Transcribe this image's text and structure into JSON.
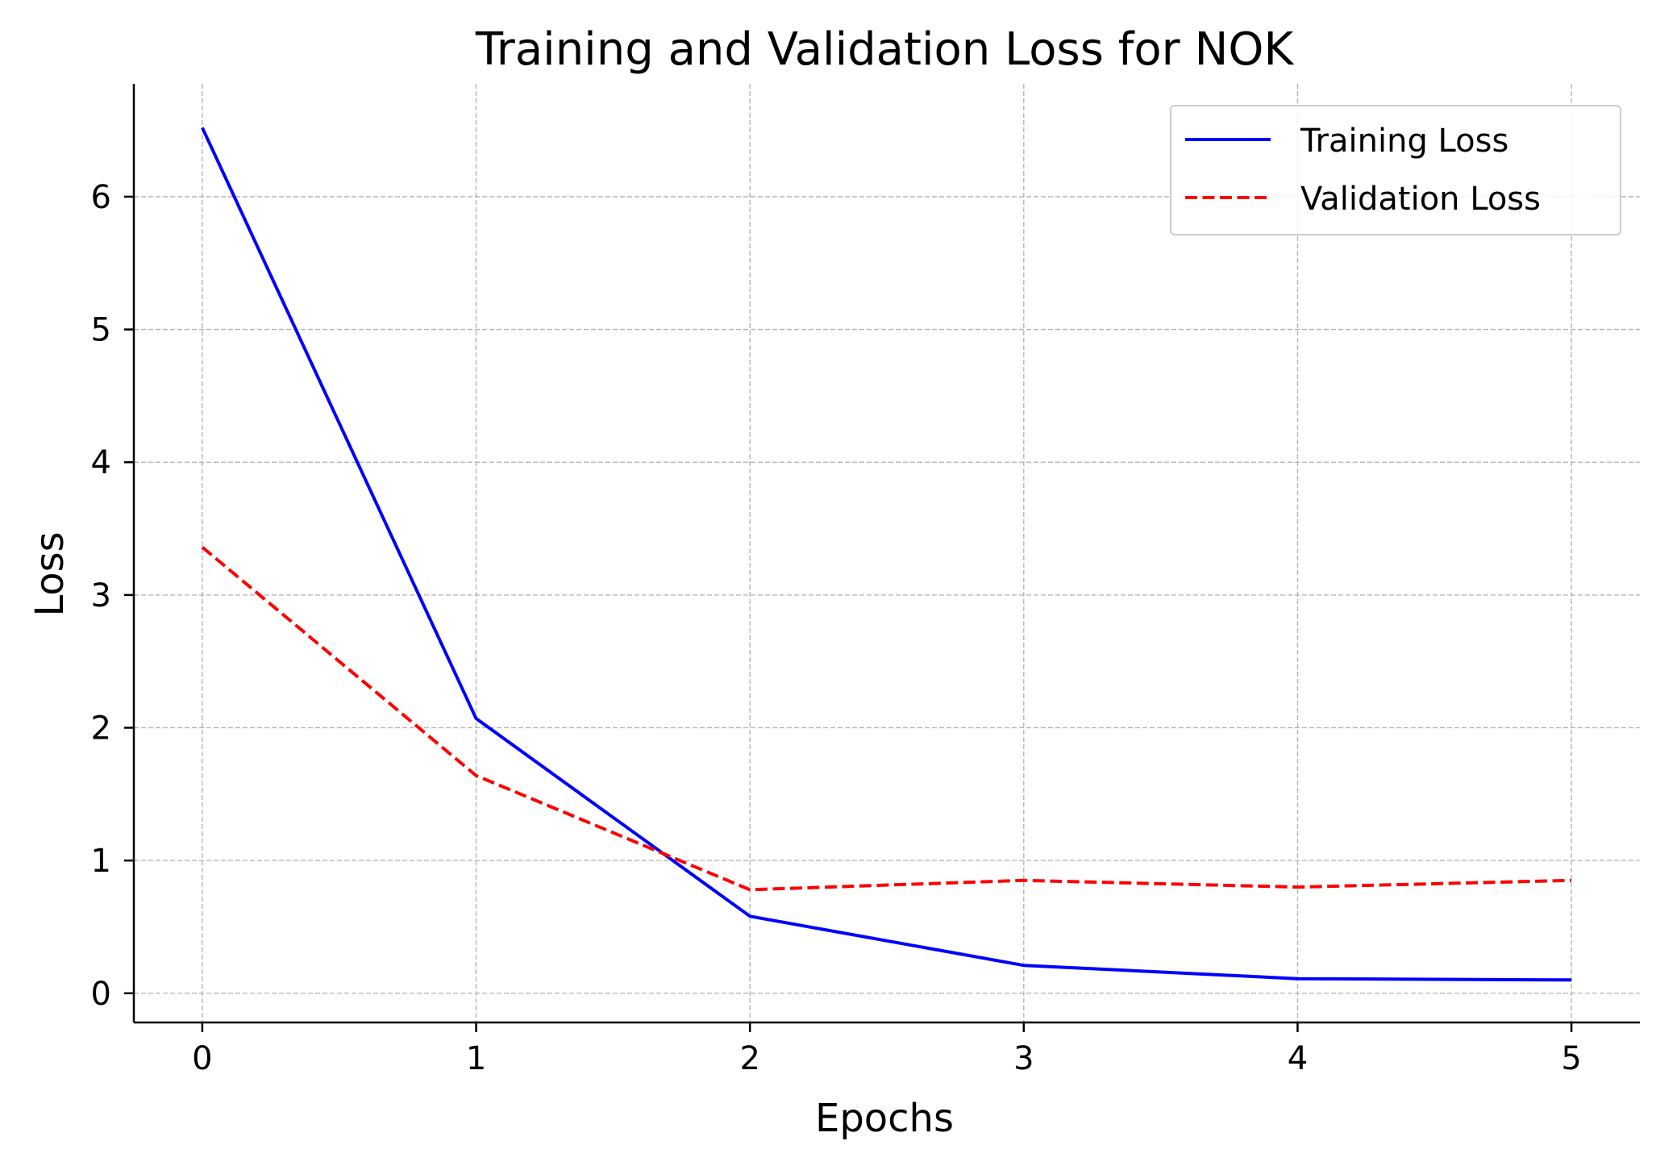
{
  "chart_data": {
    "type": "line",
    "title": "Training and Validation Loss for NOK",
    "xlabel": "Epochs",
    "ylabel": "Loss",
    "x": [
      0,
      1,
      2,
      3,
      4,
      5
    ],
    "xlim": [
      -0.25,
      5.25
    ],
    "ylim": [
      -0.22,
      6.85
    ],
    "xticks": [
      0,
      1,
      2,
      3,
      4,
      5
    ],
    "yticks": [
      0,
      1,
      2,
      3,
      4,
      5,
      6
    ],
    "grid": true,
    "legend_position": "top-right",
    "series": [
      {
        "name": "Training Loss",
        "values": [
          6.52,
          2.07,
          0.58,
          0.21,
          0.11,
          0.1
        ],
        "color": "#0000ff",
        "style": "solid"
      },
      {
        "name": "Validation Loss",
        "values": [
          3.36,
          1.64,
          0.78,
          0.85,
          0.8,
          0.85
        ],
        "color": "#ff0000",
        "style": "dashed"
      }
    ]
  }
}
